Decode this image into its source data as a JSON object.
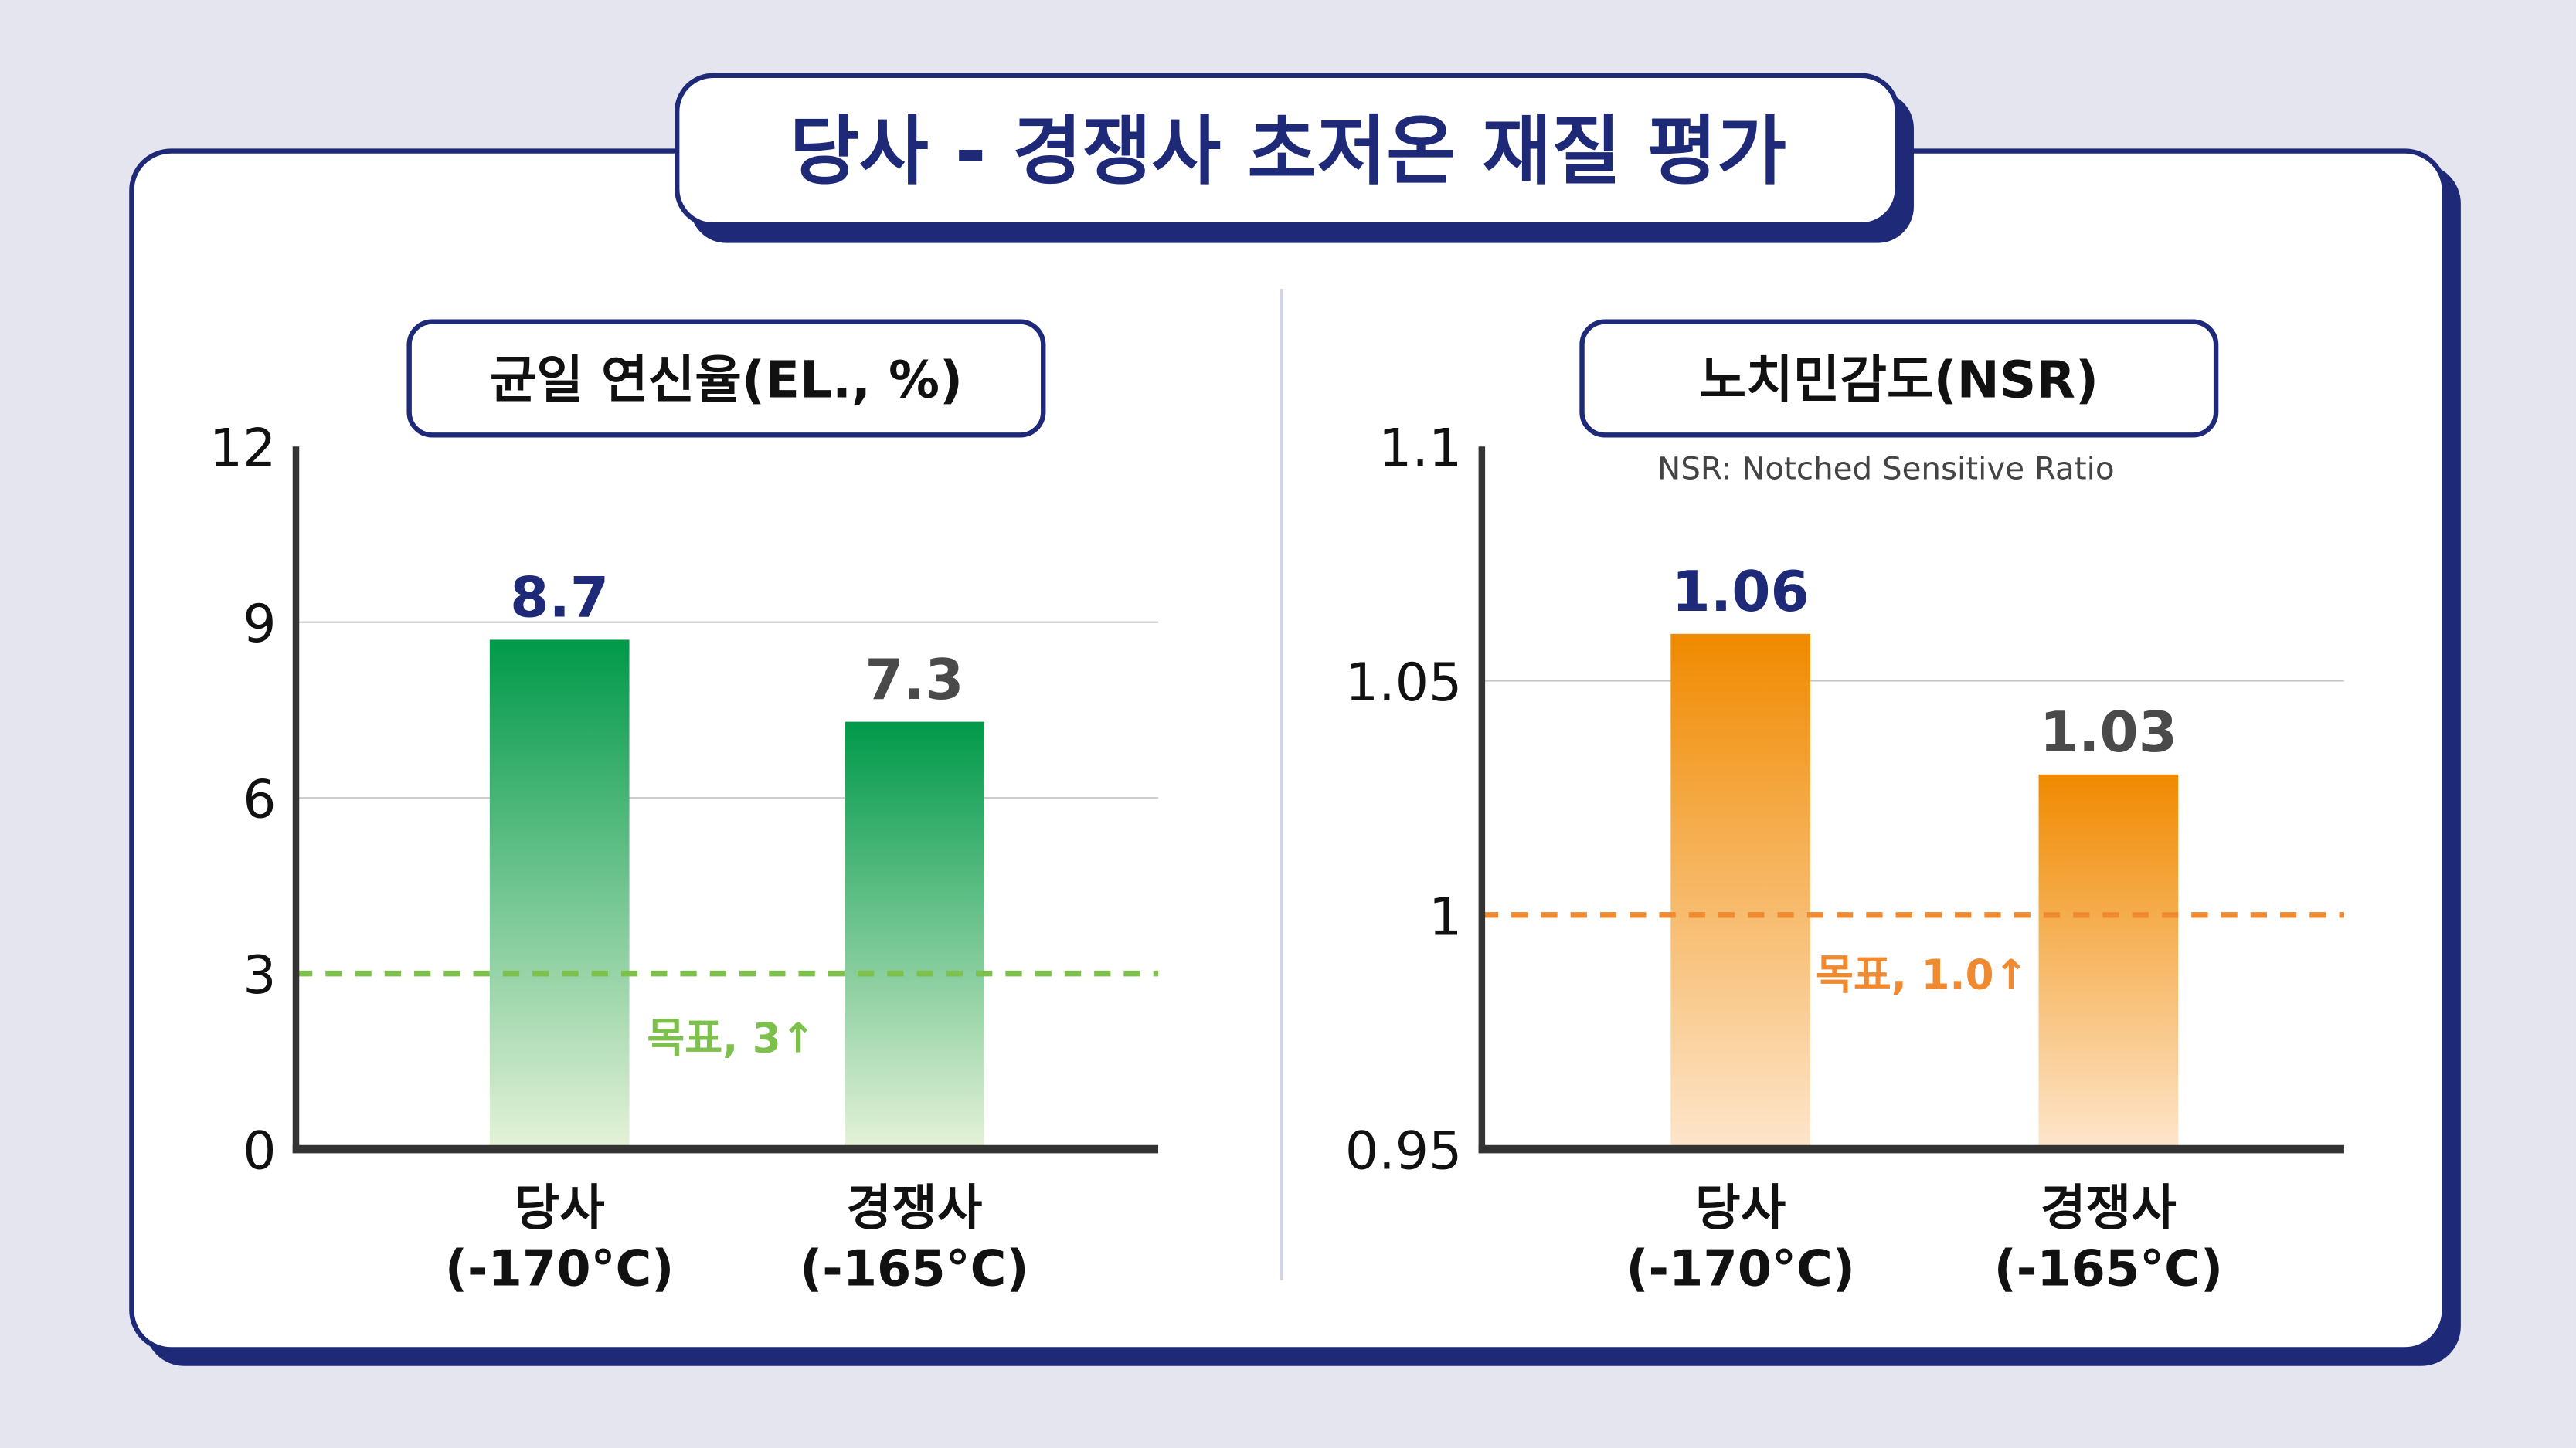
{
  "title": "당사 - 경쟁사 초저온 재질 평가",
  "colors": {
    "navy": "#1e2a78",
    "green": "#00994a",
    "green_target": "#7dc04b",
    "orange": "#f08a00",
    "orange_target": "#f08a30",
    "value_competitor": "#4a4a4a"
  },
  "chart_data": [
    {
      "type": "bar",
      "title": "균일 연신율(EL., %)",
      "categories": [
        "당사\n(-170°C)",
        "경쟁사\n(-165°C)"
      ],
      "category_lines": [
        [
          "당사",
          "(-170°C)"
        ],
        [
          "경쟁사",
          "(-165°C)"
        ]
      ],
      "values": [
        8.7,
        7.3
      ],
      "value_labels": [
        "8.7",
        "7.3"
      ],
      "ylim": [
        0,
        12
      ],
      "yticks": [
        0,
        3,
        6,
        9,
        12
      ],
      "ytick_labels": [
        "0",
        "3",
        "6",
        "9",
        "12"
      ],
      "gridlines": [
        6,
        9
      ],
      "target": {
        "value": 3,
        "label": "목표, 3↑"
      },
      "grid": true
    },
    {
      "type": "bar",
      "title": "노치민감도(NSR)",
      "subtitle": "NSR: Notched Sensitive Ratio",
      "categories": [
        "당사\n(-170°C)",
        "경쟁사\n(-165°C)"
      ],
      "category_lines": [
        [
          "당사",
          "(-170°C)"
        ],
        [
          "경쟁사",
          "(-165°C)"
        ]
      ],
      "values": [
        1.06,
        1.03
      ],
      "value_labels": [
        "1.06",
        "1.03"
      ],
      "ylim": [
        0.95,
        1.1
      ],
      "yticks": [
        0.95,
        1,
        1.05,
        1.1
      ],
      "ytick_labels": [
        "0.95",
        "1",
        "1.05",
        "1.1"
      ],
      "gridlines": [
        1.05
      ],
      "target": {
        "value": 1.0,
        "label": "목표, 1.0↑"
      },
      "grid": true
    }
  ]
}
